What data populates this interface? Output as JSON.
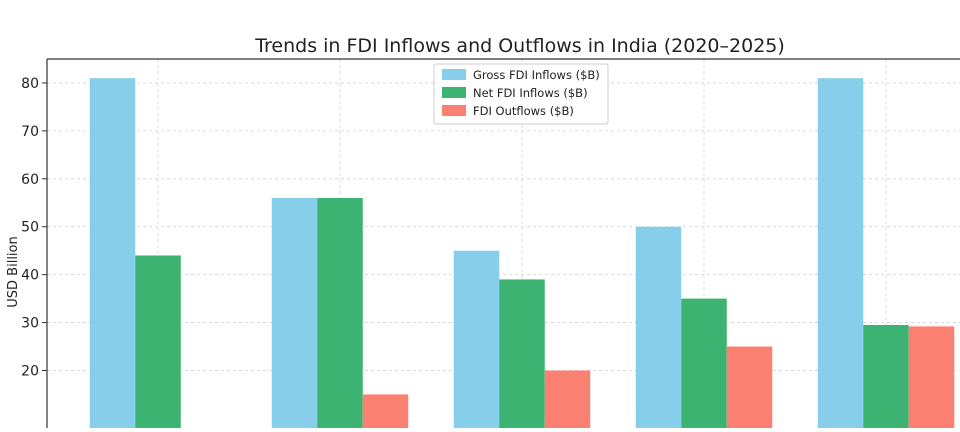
{
  "chart_data": {
    "type": "bar",
    "title": "Trends in FDI Inflows and Outflows in India (2020–2025)",
    "xlabel": "",
    "ylabel": "USD Billion",
    "ylim": [
      8,
      85
    ],
    "yticks": [
      20,
      30,
      40,
      50,
      60,
      70,
      80
    ],
    "grid": true,
    "legend_position": "upper-center",
    "categories": [
      "",
      "",
      "",
      "",
      ""
    ],
    "series": [
      {
        "name": "Gross FDI Inflows ($B)",
        "color": "#87ceeb",
        "values": [
          81,
          56,
          45,
          50,
          81
        ]
      },
      {
        "name": "Net FDI Inflows ($B)",
        "color": "#3cb371",
        "values": [
          44,
          56,
          39,
          35,
          29.5
        ]
      },
      {
        "name": "FDI Outflows ($B)",
        "color": "#fa8072",
        "values": [
          null,
          15,
          20,
          25,
          29.2
        ]
      }
    ]
  }
}
